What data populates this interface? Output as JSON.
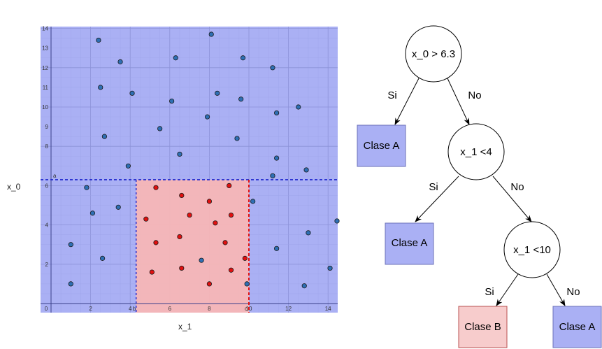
{
  "plot": {
    "x_title": "x_1",
    "y_title": "x_0",
    "x_ticks": [
      "0",
      "2",
      "4",
      "6",
      "8",
      "10",
      "12",
      "14"
    ],
    "y_ticks": [
      "2",
      "4",
      "6",
      "8",
      "9",
      "10",
      "11",
      "12",
      "13",
      "14"
    ],
    "line_a_label": "a",
    "line_b_label": "b",
    "line_c_label": "c",
    "colors": {
      "region_a": "#aab0f4",
      "region_b": "#f7b6b6",
      "point_a": "#2e6fb4",
      "point_b": "#e01010",
      "dash_blue": "#1a22cc",
      "dash_red": "#e01010"
    }
  },
  "chart_data": {
    "type": "scatter",
    "xlim": [
      -0.5,
      14.5
    ],
    "ylim": [
      -0.5,
      14.2
    ],
    "regions": [
      {
        "label": "Clase A",
        "rule": "x_0 > 6.3"
      },
      {
        "label": "Clase A",
        "rule": "x_1 < 4"
      },
      {
        "label": "Clase B",
        "rule": "4 <= x_1 < 10"
      },
      {
        "label": "Clase A",
        "rule": "x_1 >= 10"
      }
    ],
    "series": [
      {
        "points": [
          [
            2.4,
            13.4
          ],
          [
            3.5,
            12.3
          ],
          [
            6.3,
            12.5
          ],
          [
            8.1,
            13.7
          ],
          [
            9.7,
            12.5
          ],
          [
            11.2,
            12
          ],
          [
            2.5,
            11
          ],
          [
            4.1,
            10.7
          ],
          [
            6.1,
            10.3
          ],
          [
            8.4,
            10.7
          ],
          [
            9.6,
            10.4
          ],
          [
            11.4,
            9.7
          ],
          [
            12.5,
            10
          ],
          [
            7.9,
            9.5
          ],
          [
            5.5,
            8.9
          ],
          [
            2.7,
            8.5
          ],
          [
            9.4,
            8.4
          ],
          [
            6.5,
            7.6
          ],
          [
            11.4,
            7.4
          ],
          [
            3.9,
            7
          ],
          [
            11.2,
            6.5
          ],
          [
            12.9,
            6.8
          ],
          [
            1.8,
            5.9
          ],
          [
            2.1,
            4.6
          ],
          [
            3.4,
            4.9
          ],
          [
            10.2,
            5.2
          ],
          [
            14.5,
            4.2
          ],
          [
            13,
            3.6
          ],
          [
            1,
            3
          ],
          [
            11.4,
            2.8
          ],
          [
            2.6,
            2.3
          ],
          [
            7.6,
            2.2
          ],
          [
            14.1,
            1.8
          ],
          [
            1,
            1
          ],
          [
            9.9,
            1
          ],
          [
            12.8,
            0.9
          ]
        ]
      },
      {
        "points": [
          [
            5.3,
            5.9
          ],
          [
            6.6,
            5.5
          ],
          [
            9,
            6
          ],
          [
            8,
            5.2
          ],
          [
            4.8,
            4.3
          ],
          [
            7,
            4.5
          ],
          [
            8.3,
            4.1
          ],
          [
            9.1,
            4.5
          ],
          [
            6.5,
            3.4
          ],
          [
            5.3,
            3.1
          ],
          [
            8.8,
            3.1
          ],
          [
            9.8,
            2.3
          ],
          [
            6.6,
            1.8
          ],
          [
            5.1,
            1.6
          ],
          [
            9.1,
            1.7
          ],
          [
            8,
            1
          ]
        ]
      }
    ],
    "thresholds": {
      "x_0": 6.3,
      "x_1_low": 4.3,
      "x_1_high": 10
    }
  },
  "tree": {
    "root": {
      "label": "x_0 > 6.3"
    },
    "node2": {
      "label": "x_1 <4"
    },
    "node3": {
      "label": "x_1 <10"
    },
    "leaf1": {
      "label": "Clase A"
    },
    "leaf2": {
      "label": "Clase A"
    },
    "leaf3": {
      "label": "Clase B"
    },
    "leaf4": {
      "label": "Clase A"
    },
    "edges": {
      "e1": "Si",
      "e2": "No",
      "e3": "Si",
      "e4": "No",
      "e5": "Si",
      "e6": "No"
    },
    "colors": {
      "class_a_fill": "#aab0f4",
      "class_a_stroke": "#6c72b8",
      "class_b_fill": "#f7cccc",
      "class_b_stroke": "#b85050"
    }
  }
}
